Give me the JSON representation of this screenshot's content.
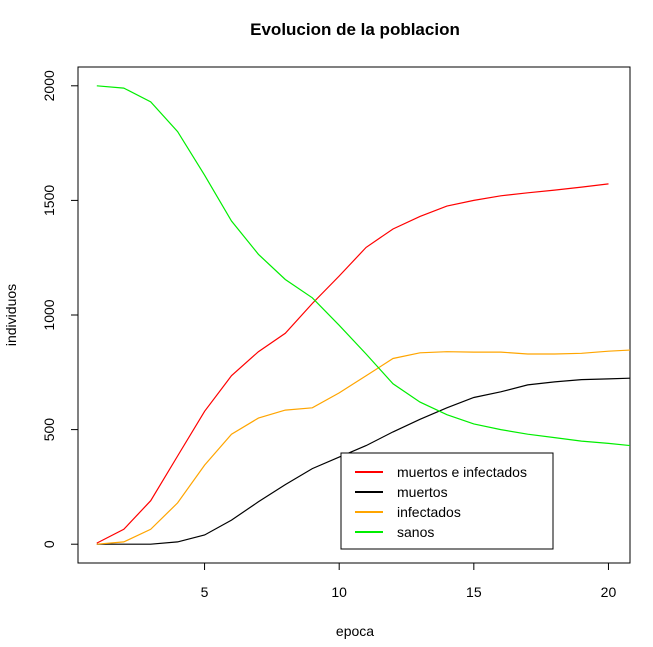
{
  "chart_data": {
    "type": "line",
    "title": "Evolucion de la poblacion",
    "xlabel": "epoca",
    "ylabel": "individuos",
    "xlim": [
      0.3,
      20.8
    ],
    "ylim": [
      -82,
      2082
    ],
    "xticks": [
      5,
      10,
      15,
      20
    ],
    "yticks": [
      0,
      500,
      1000,
      1500,
      2000
    ],
    "grid": false,
    "legend_position": "bottom-right",
    "x": [
      1,
      2,
      3,
      4,
      5,
      6,
      7,
      8,
      9,
      10,
      11,
      12,
      13,
      14,
      15,
      16,
      17,
      18,
      19,
      20,
      21
    ],
    "series": [
      {
        "name": "muertos e infectados",
        "color": "#ff0000",
        "values": [
          5,
          65,
          190,
          385,
          580,
          735,
          840,
          920,
          1050,
          1170,
          1295,
          1375,
          1430,
          1475,
          1500,
          1520,
          1533,
          1545,
          1558,
          1572,
          null
        ]
      },
      {
        "name": "muertos",
        "color": "#000000",
        "values": [
          0,
          0,
          0,
          10,
          40,
          105,
          185,
          260,
          330,
          380,
          430,
          490,
          545,
          595,
          640,
          665,
          695,
          708,
          718,
          721,
          725
        ]
      },
      {
        "name": "infectados",
        "color": "#ffa500",
        "values": [
          0,
          10,
          65,
          180,
          345,
          480,
          550,
          585,
          595,
          660,
          735,
          810,
          835,
          840,
          838,
          838,
          830,
          830,
          833,
          842,
          848
        ]
      },
      {
        "name": "sanos",
        "color": "#00ee00",
        "values": [
          2000,
          1990,
          1930,
          1800,
          1610,
          1410,
          1265,
          1155,
          1075,
          955,
          830,
          700,
          620,
          565,
          525,
          500,
          480,
          465,
          450,
          440,
          428
        ]
      }
    ]
  }
}
